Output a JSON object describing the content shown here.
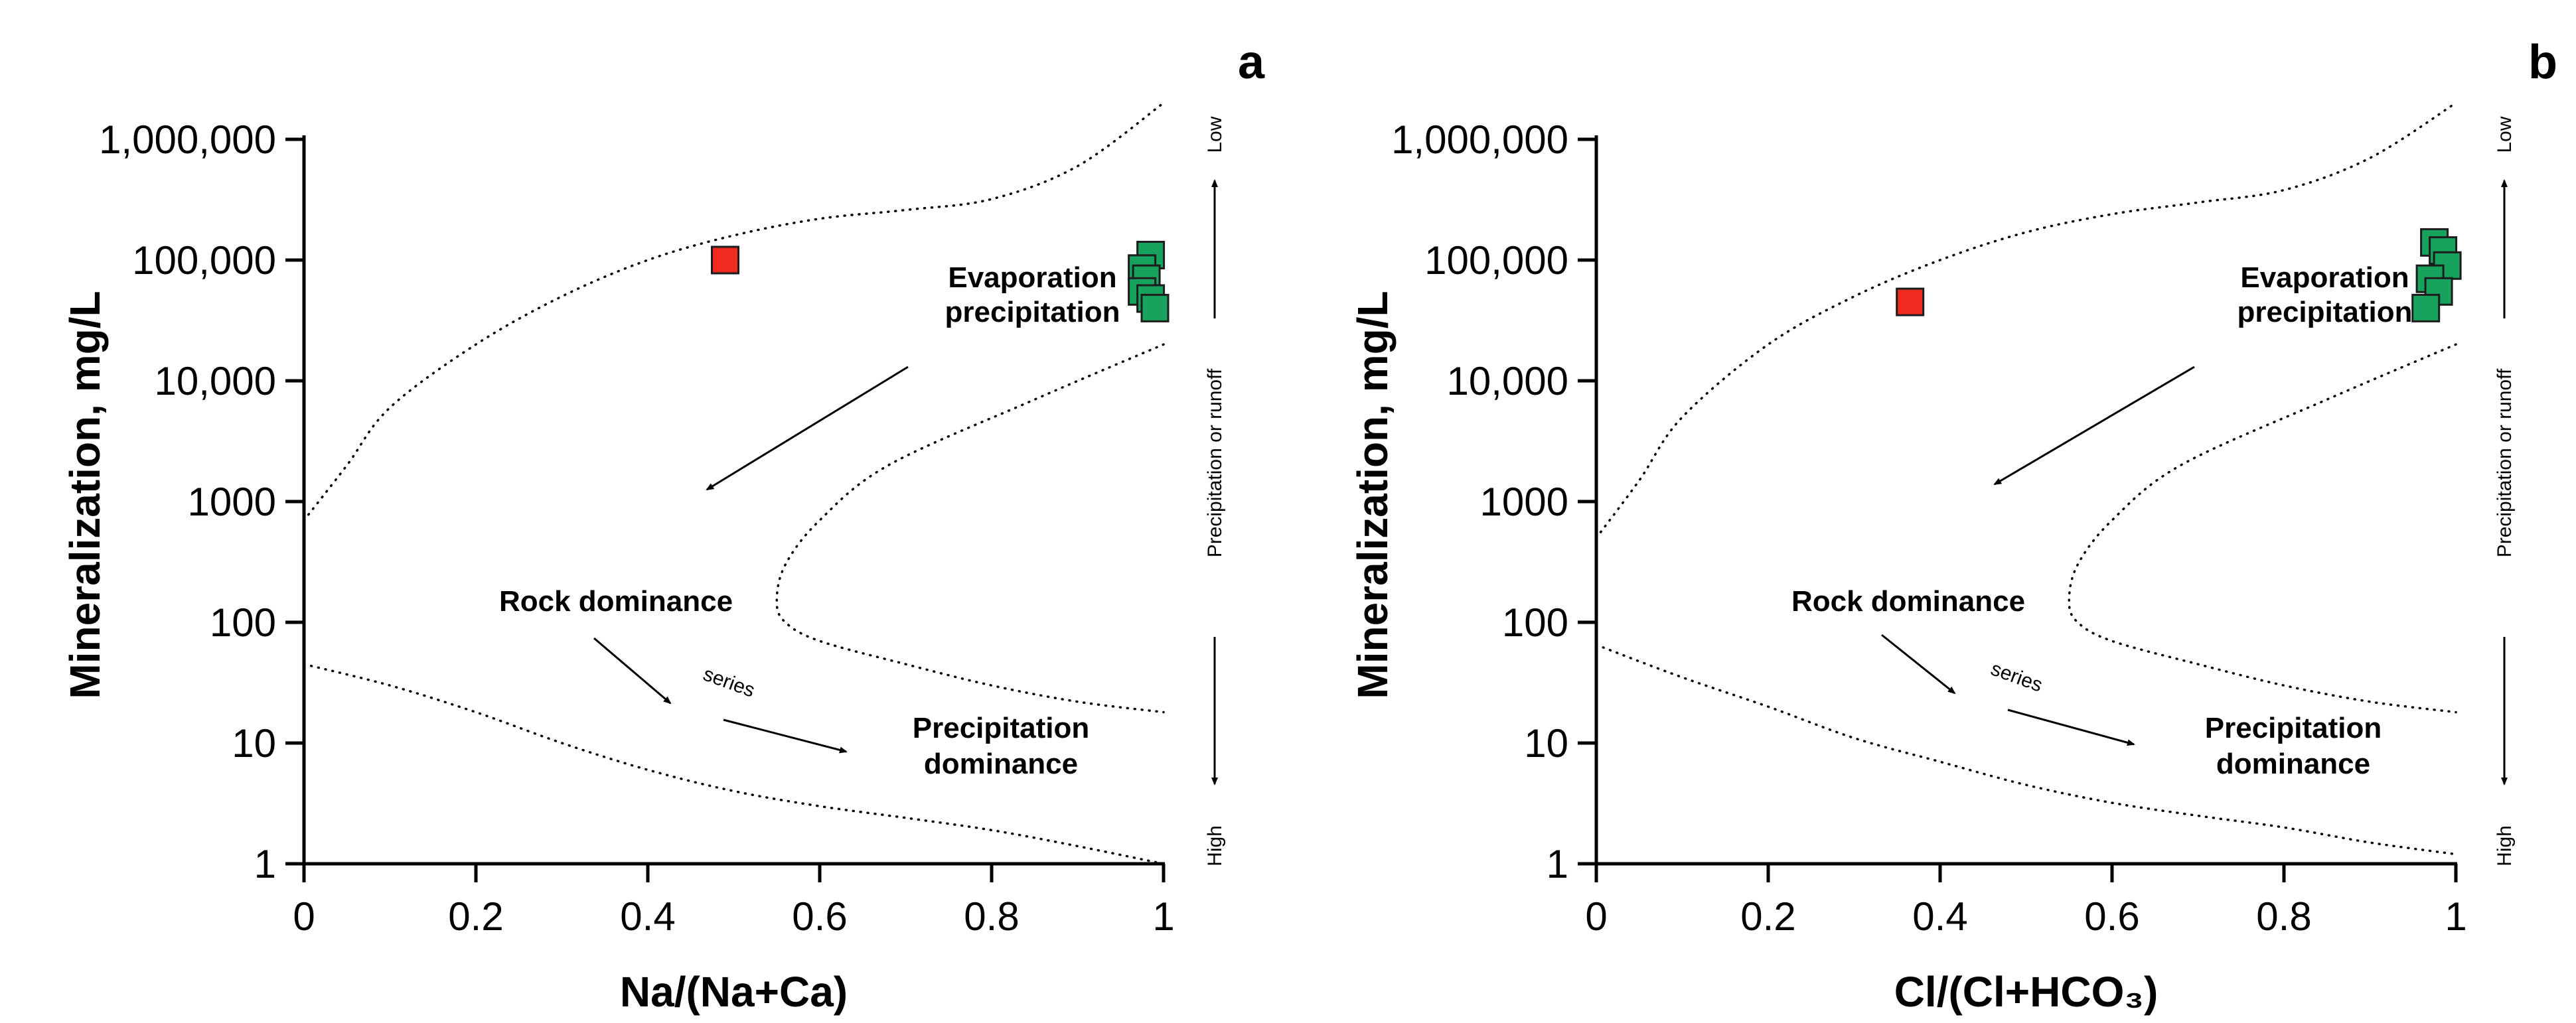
{
  "chart_data": [
    {
      "type": "scatter",
      "panel_label": "a",
      "title": "",
      "xlabel": "Na/(Na+Ca)",
      "ylabel": "Mineralization, mg/L",
      "xlim": [
        0,
        1
      ],
      "ylim": [
        1,
        1000000
      ],
      "yscale": "log",
      "xticks": [
        0,
        0.2,
        0.4,
        0.6,
        0.8,
        1
      ],
      "xtick_labels": [
        "0",
        "0.2",
        "0.4",
        "0.6",
        "0.8",
        "1"
      ],
      "yticks": [
        1,
        10,
        100,
        1000,
        10000,
        100000,
        1000000
      ],
      "ytick_labels": [
        "1",
        "10",
        "100",
        "1000",
        "10,000",
        "100,000",
        "1,000,000"
      ],
      "grid": false,
      "series": [
        {
          "name": "red sample",
          "color": "#ef2b1f",
          "x": [
            0.49
          ],
          "y": [
            100000
          ]
        },
        {
          "name": "green samples",
          "color": "#17a35e",
          "x": [
            0.985,
            0.975,
            0.98,
            0.975,
            0.985,
            0.99
          ],
          "y": [
            110000,
            85000,
            70000,
            55000,
            48000,
            40000
          ]
        }
      ],
      "boundaries": {
        "upper": {
          "x": [
            0,
            0.05,
            0.1,
            0.2,
            0.3,
            0.4,
            0.5,
            0.6,
            0.7,
            0.8,
            0.9,
            1.0
          ],
          "y": [
            700,
            2000,
            6000,
            20000,
            50000,
            100000,
            160000,
            220000,
            260000,
            320000,
            600000,
            2000000
          ]
        },
        "middle": {
          "x": [
            1.0,
            0.85,
            0.68,
            0.6,
            0.56,
            0.55,
            0.56,
            0.6,
            0.7,
            0.8,
            0.9,
            1.0
          ],
          "y": [
            20000,
            7000,
            2000,
            700,
            300,
            150,
            100,
            70,
            45,
            30,
            22,
            18
          ]
        },
        "lower": {
          "x": [
            0,
            0.1,
            0.2,
            0.3,
            0.4,
            0.5,
            0.6,
            0.7,
            0.8,
            0.9,
            1.0
          ],
          "y": [
            45,
            30,
            18,
            10,
            6,
            4,
            3,
            2.4,
            1.9,
            1.4,
            1
          ]
        }
      },
      "annotations": {
        "evaporation": [
          "Evaporation",
          "precipitation"
        ],
        "rock": "Rock dominance",
        "series": "series",
        "precipitation_dom": [
          "Precipitation",
          "dominance"
        ],
        "side_low": "Low",
        "side_mid": "Precipitation or runoff",
        "side_high": "High"
      }
    },
    {
      "type": "scatter",
      "panel_label": "b",
      "title": "",
      "xlabel": "Cl/(Cl+HCO₃)",
      "ylabel": "Mineralization, mg/L",
      "xlim": [
        0,
        1
      ],
      "ylim": [
        1,
        1000000
      ],
      "yscale": "log",
      "xticks": [
        0,
        0.2,
        0.4,
        0.6,
        0.8,
        1
      ],
      "xtick_labels": [
        "0",
        "0.2",
        "0.4",
        "0.6",
        "0.8",
        "1"
      ],
      "yticks": [
        1,
        10,
        100,
        1000,
        10000,
        100000,
        1000000
      ],
      "ytick_labels": [
        "1",
        "10",
        "100",
        "1000",
        "10,000",
        "100,000",
        "1,000,000"
      ],
      "grid": false,
      "series": [
        {
          "name": "red sample",
          "color": "#ef2b1f",
          "x": [
            0.365
          ],
          "y": [
            45000
          ]
        },
        {
          "name": "green samples",
          "color": "#17a35e",
          "x": [
            0.975,
            0.985,
            0.99,
            0.97,
            0.98,
            0.965
          ],
          "y": [
            140000,
            120000,
            90000,
            70000,
            55000,
            40000
          ]
        }
      ],
      "boundaries": {
        "upper": {
          "x": [
            0,
            0.05,
            0.1,
            0.2,
            0.3,
            0.4,
            0.5,
            0.6,
            0.7,
            0.8,
            0.9,
            1.0
          ],
          "y": [
            500,
            1500,
            5000,
            20000,
            50000,
            100000,
            170000,
            240000,
            300000,
            380000,
            700000,
            2000000
          ]
        },
        "middle": {
          "x": [
            1.0,
            0.85,
            0.68,
            0.6,
            0.56,
            0.55,
            0.56,
            0.6,
            0.7,
            0.8,
            0.9,
            1.0
          ],
          "y": [
            20000,
            7000,
            2000,
            700,
            300,
            150,
            100,
            70,
            45,
            30,
            22,
            18
          ]
        },
        "lower": {
          "x": [
            0,
            0.1,
            0.2,
            0.3,
            0.4,
            0.5,
            0.6,
            0.7,
            0.8,
            0.9,
            1.0
          ],
          "y": [
            65,
            35,
            20,
            11,
            7,
            4.5,
            3.2,
            2.5,
            2,
            1.5,
            1.2
          ]
        }
      },
      "annotations": {
        "evaporation": [
          "Evaporation",
          "precipitation"
        ],
        "rock": "Rock dominance",
        "series": "series",
        "precipitation_dom": [
          "Precipitation",
          "dominance"
        ],
        "side_low": "Low",
        "side_mid": "Precipitation or runoff",
        "side_high": "High"
      }
    }
  ]
}
